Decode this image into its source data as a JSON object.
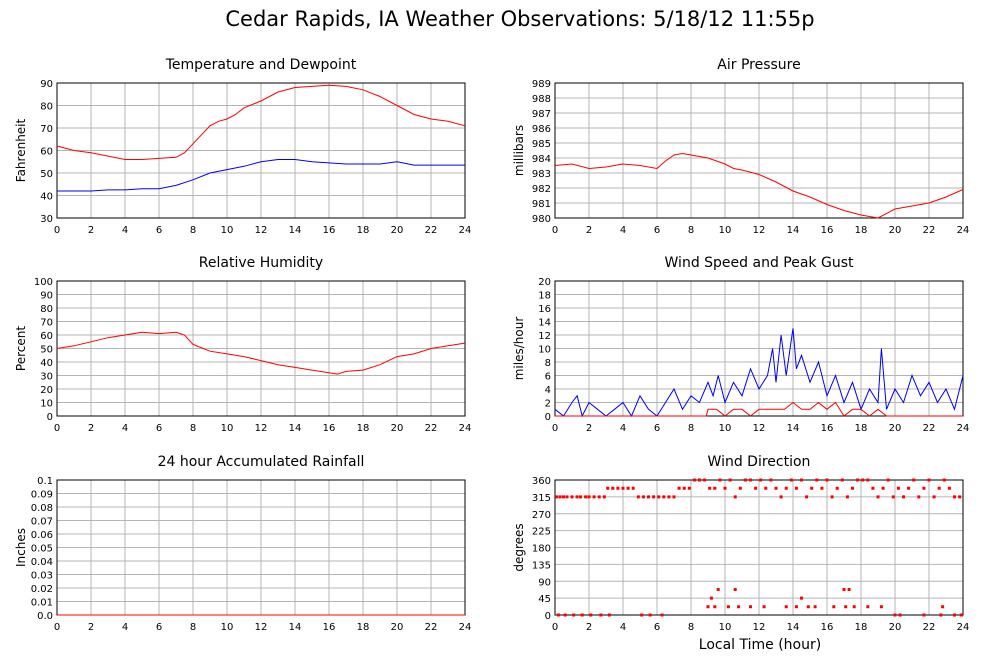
{
  "title": "Cedar Rapids, IA Weather Observations: 5/18/12 11:55p",
  "x_axis_label": "Local Time (hour)",
  "chart_data": [
    {
      "id": "temp",
      "type": "line",
      "title": "Temperature and Dewpoint",
      "ylabel": "Fahrenheit",
      "xlim": [
        0,
        24
      ],
      "ylim": [
        30,
        90
      ],
      "yticks": [
        30,
        40,
        50,
        60,
        70,
        80,
        90
      ],
      "xticks": [
        0,
        2,
        4,
        6,
        8,
        10,
        12,
        14,
        16,
        18,
        20,
        22,
        24
      ],
      "grid": true,
      "series": [
        {
          "color": "#ff0000",
          "x": [
            0,
            1,
            2,
            3,
            4,
            5,
            6,
            7,
            7.5,
            8,
            8.5,
            9,
            9.5,
            10,
            10.5,
            11,
            12,
            13,
            14,
            15,
            16,
            17,
            18,
            19,
            20,
            21,
            22,
            23,
            24
          ],
          "y": [
            62,
            60,
            59,
            57.5,
            56,
            56,
            56.5,
            57,
            59,
            63,
            67,
            71,
            73,
            74,
            76,
            79,
            82,
            86,
            88,
            88.5,
            89,
            88.5,
            87,
            84,
            80,
            76,
            74,
            73,
            71
          ]
        },
        {
          "color": "#0000ff",
          "x": [
            0,
            1,
            2,
            3,
            4,
            5,
            6,
            7,
            8,
            9,
            10,
            11,
            12,
            13,
            14,
            15,
            16,
            17,
            18,
            19,
            20,
            21,
            22,
            23,
            24
          ],
          "y": [
            42,
            42,
            42,
            42.5,
            42.5,
            43,
            43,
            44.5,
            47,
            50,
            51.5,
            53,
            55,
            56,
            56,
            55,
            54.5,
            54,
            54,
            54,
            55,
            53.5,
            53.5,
            53.5,
            53.5
          ]
        }
      ]
    },
    {
      "id": "pressure",
      "type": "line",
      "title": "Air Pressure",
      "ylabel": "millibars",
      "xlim": [
        0,
        24
      ],
      "ylim": [
        980,
        989
      ],
      "yticks": [
        980,
        981,
        982,
        983,
        984,
        985,
        986,
        987,
        988,
        989
      ],
      "xticks": [
        0,
        2,
        4,
        6,
        8,
        10,
        12,
        14,
        16,
        18,
        20,
        22,
        24
      ],
      "grid": true,
      "series": [
        {
          "color": "#ff0000",
          "x": [
            0,
            1,
            2,
            3,
            4,
            5,
            6,
            6.5,
            7,
            7.5,
            8,
            9,
            10,
            10.5,
            11,
            12,
            13,
            14,
            15,
            16,
            17,
            18,
            19,
            20,
            21,
            22,
            23,
            24
          ],
          "y": [
            983.5,
            983.6,
            983.3,
            983.4,
            983.6,
            983.5,
            983.3,
            983.8,
            984.2,
            984.3,
            984.2,
            984.0,
            983.6,
            983.3,
            983.2,
            982.9,
            982.4,
            981.8,
            981.4,
            980.9,
            980.5,
            980.2,
            980.0,
            980.6,
            980.8,
            981.0,
            981.4,
            981.9
          ]
        }
      ]
    },
    {
      "id": "rh",
      "type": "line",
      "title": "Relative Humidity",
      "ylabel": "Percent",
      "xlim": [
        0,
        24
      ],
      "ylim": [
        0,
        100
      ],
      "yticks": [
        0,
        10,
        20,
        30,
        40,
        50,
        60,
        70,
        80,
        90,
        100
      ],
      "xticks": [
        0,
        2,
        4,
        6,
        8,
        10,
        12,
        14,
        16,
        18,
        20,
        22,
        24
      ],
      "grid": true,
      "series": [
        {
          "color": "#ff0000",
          "x": [
            0,
            1,
            2,
            3,
            4,
            5,
            6,
            7,
            7.5,
            8,
            9,
            10,
            11,
            12,
            13,
            14,
            15,
            16,
            16.5,
            17,
            18,
            19,
            20,
            21,
            22,
            23,
            24
          ],
          "y": [
            50,
            52,
            55,
            58,
            60,
            62,
            61,
            62,
            60,
            53,
            48,
            46,
            44,
            41,
            38,
            36,
            34,
            32,
            31,
            33,
            34,
            38,
            44,
            46,
            50,
            52,
            54
          ]
        }
      ]
    },
    {
      "id": "wind",
      "type": "line",
      "title": "Wind Speed and Peak Gust",
      "ylabel": "miles/hour",
      "xlim": [
        0,
        24
      ],
      "ylim": [
        0,
        20
      ],
      "yticks": [
        0,
        2,
        4,
        6,
        8,
        10,
        12,
        14,
        16,
        18,
        20
      ],
      "xticks": [
        0,
        2,
        4,
        6,
        8,
        10,
        12,
        14,
        16,
        18,
        20,
        22,
        24
      ],
      "grid": true,
      "series": [
        {
          "color": "#0000ff",
          "x": [
            0,
            0.5,
            1,
            1.3,
            1.6,
            2,
            2.5,
            3,
            3.5,
            4,
            4.5,
            5,
            5.5,
            6,
            6.5,
            7,
            7.5,
            8,
            8.5,
            9,
            9.3,
            9.6,
            10,
            10.5,
            11,
            11.5,
            12,
            12.5,
            12.8,
            13,
            13.3,
            13.6,
            14,
            14.2,
            14.5,
            15,
            15.5,
            16,
            16.5,
            17,
            17.5,
            18,
            18.5,
            19,
            19.2,
            19.5,
            20,
            20.5,
            21,
            21.5,
            22,
            22.5,
            23,
            23.5,
            24
          ],
          "y": [
            1,
            0,
            2,
            3,
            0,
            2,
            1,
            0,
            1,
            2,
            0,
            3,
            1,
            0,
            2,
            4,
            1,
            3,
            2,
            5,
            3,
            6,
            2,
            5,
            3,
            7,
            4,
            6,
            10,
            5,
            12,
            6,
            13,
            7,
            9,
            5,
            8,
            3,
            6,
            2,
            5,
            1,
            4,
            2,
            10,
            1,
            4,
            2,
            6,
            3,
            5,
            2,
            4,
            1,
            6
          ]
        },
        {
          "color": "#ff0000",
          "x": [
            0,
            8.9,
            9,
            9.5,
            10,
            10.5,
            11,
            11.5,
            12,
            12.5,
            13,
            13.5,
            14,
            14.5,
            15,
            15.5,
            16,
            16.5,
            17,
            17.5,
            18,
            18.5,
            19,
            19.5,
            20,
            20.5,
            21,
            21.5,
            22,
            22.5,
            23,
            23.5,
            24
          ],
          "y": [
            0,
            0,
            1,
            1,
            0,
            1,
            1,
            0,
            1,
            1,
            1,
            1,
            2,
            1,
            1,
            2,
            1,
            2,
            0,
            1,
            1,
            0,
            1,
            0,
            0,
            0,
            0,
            0,
            0,
            0,
            0,
            0,
            0
          ]
        }
      ]
    },
    {
      "id": "rain",
      "type": "line",
      "title": "24 hour Accumulated Rainfall",
      "ylabel": "Inches",
      "xlim": [
        0,
        24
      ],
      "ylim": [
        0,
        0.1
      ],
      "yticks": [
        "0.0",
        "0.01",
        "0.02",
        "0.03",
        "0.04",
        "0.05",
        "0.06",
        "0.07",
        "0.08",
        "0.09",
        "0.1"
      ],
      "xticks": [
        0,
        2,
        4,
        6,
        8,
        10,
        12,
        14,
        16,
        18,
        20,
        22,
        24
      ],
      "grid": true,
      "series": [
        {
          "color": "#ff0000",
          "x": [
            0,
            24
          ],
          "y": [
            0,
            0
          ]
        }
      ]
    },
    {
      "id": "dir",
      "type": "scatter",
      "title": "Wind Direction",
      "ylabel": "degrees",
      "xlim": [
        0,
        24
      ],
      "ylim": [
        0,
        360
      ],
      "yticks": [
        0,
        45,
        90,
        135,
        180,
        225,
        270,
        315,
        360
      ],
      "xticks": [
        0,
        2,
        4,
        6,
        8,
        10,
        12,
        14,
        16,
        18,
        20,
        22,
        24
      ],
      "grid": true,
      "series": [
        {
          "color": "#ff0000",
          "x": [
            0.1,
            0.3,
            0.5,
            0.7,
            1.0,
            1.3,
            1.5,
            1.8,
            2.0,
            2.3,
            2.6,
            2.9,
            3.1,
            3.4,
            3.7,
            4.0,
            4.3,
            4.6,
            4.9,
            5.2,
            5.5,
            5.8,
            6.1,
            6.4,
            6.7,
            7.0,
            7.3,
            7.6,
            7.9,
            8.2,
            8.5,
            8.8,
            9.1,
            9.4,
            9.7,
            10.0,
            10.3,
            10.6,
            10.9,
            11.2,
            11.5,
            11.8,
            12.1,
            12.4,
            12.7,
            13.0,
            13.3,
            13.6,
            13.9,
            14.2,
            14.5,
            14.8,
            15.1,
            15.4,
            15.7,
            16.0,
            16.3,
            16.6,
            16.9,
            17.2,
            17.5,
            17.8,
            18.1,
            18.4,
            18.7,
            19.0,
            19.3,
            19.6,
            19.9,
            20.2,
            20.5,
            20.8,
            21.1,
            21.4,
            21.7,
            22.0,
            22.3,
            22.6,
            22.9,
            23.2,
            23.5,
            23.8,
            0.2,
            0.6,
            1.1,
            1.6,
            2.1,
            2.7,
            3.2,
            5.1,
            5.6,
            6.3,
            9.0,
            9.4,
            10.2,
            10.8,
            11.5,
            12.3,
            13.6,
            14.2,
            14.9,
            15.3,
            16.4,
            17.1,
            17.6,
            18.4,
            20.0,
            20.3,
            21.7,
            22.7,
            23.5,
            23.9,
            9.2,
            9.6,
            10.6,
            14.5,
            17.0,
            17.3,
            19.2,
            22.8
          ],
          "y": [
            315,
            315,
            315,
            315,
            315,
            315,
            315,
            315,
            315,
            315,
            315,
            315,
            338,
            338,
            338,
            338,
            338,
            338,
            315,
            315,
            315,
            315,
            315,
            315,
            315,
            315,
            338,
            338,
            338,
            360,
            360,
            360,
            338,
            338,
            360,
            338,
            360,
            315,
            338,
            360,
            360,
            338,
            360,
            338,
            360,
            338,
            315,
            338,
            360,
            338,
            360,
            315,
            338,
            360,
            338,
            360,
            315,
            338,
            360,
            315,
            338,
            360,
            360,
            360,
            338,
            315,
            338,
            360,
            315,
            338,
            315,
            338,
            360,
            315,
            338,
            360,
            315,
            338,
            360,
            338,
            315,
            315,
            0,
            0,
            0,
            0,
            0,
            0,
            0,
            0,
            0,
            0,
            22,
            22,
            22,
            22,
            22,
            22,
            22,
            22,
            22,
            22,
            22,
            22,
            22,
            22,
            0,
            0,
            0,
            0,
            0,
            0,
            45,
            68,
            68,
            45,
            68,
            68,
            22,
            22
          ]
        }
      ]
    }
  ]
}
